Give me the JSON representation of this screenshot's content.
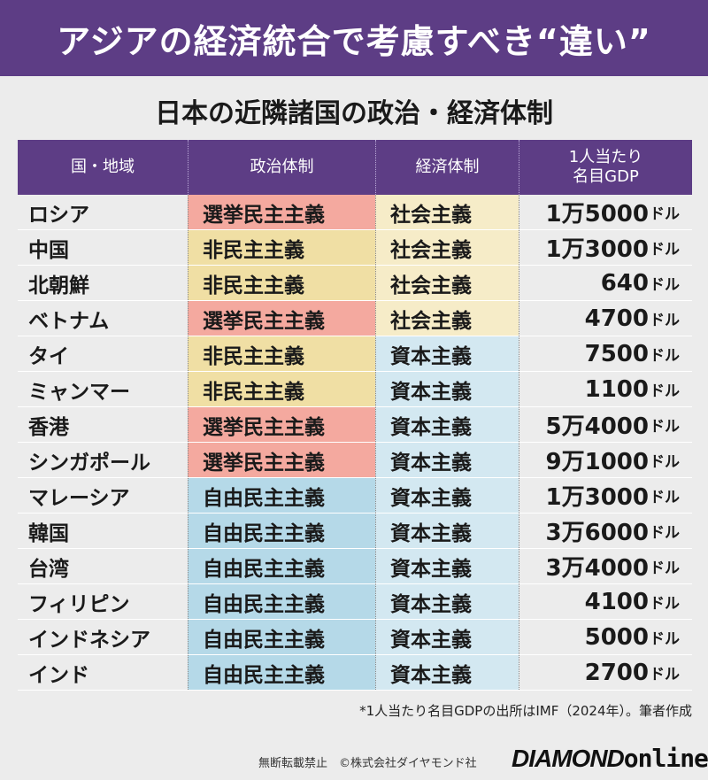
{
  "header": {
    "title": "アジアの経済統合で考慮すべき“違い”"
  },
  "subtitle": "日本の近隣諸国の政治・経済体制",
  "table": {
    "columns": [
      "国・地域",
      "政治体制",
      "経済体制",
      "1人当たり\n名目GDP"
    ],
    "rows": [
      {
        "country": "ロシア",
        "political": "選挙民主主義",
        "economic": "社会主義",
        "gdp_num": "1万5000",
        "gdp_unit": "ドル"
      },
      {
        "country": "中国",
        "political": "非民主主義",
        "economic": "社会主義",
        "gdp_num": "1万3000",
        "gdp_unit": "ドル"
      },
      {
        "country": "北朝鮮",
        "political": "非民主主義",
        "economic": "社会主義",
        "gdp_num": "640",
        "gdp_unit": "ドル"
      },
      {
        "country": "ベトナム",
        "political": "選挙民主主義",
        "economic": "社会主義",
        "gdp_num": "4700",
        "gdp_unit": "ドル"
      },
      {
        "country": "タイ",
        "political": "非民主主義",
        "economic": "資本主義",
        "gdp_num": "7500",
        "gdp_unit": "ドル"
      },
      {
        "country": "ミャンマー",
        "political": "非民主主義",
        "economic": "資本主義",
        "gdp_num": "1100",
        "gdp_unit": "ドル"
      },
      {
        "country": "香港",
        "political": "選挙民主主義",
        "economic": "資本主義",
        "gdp_num": "5万4000",
        "gdp_unit": "ドル"
      },
      {
        "country": "シンガポール",
        "political": "選挙民主主義",
        "economic": "資本主義",
        "gdp_num": "9万1000",
        "gdp_unit": "ドル"
      },
      {
        "country": "マレーシア",
        "political": "自由民主主義",
        "economic": "資本主義",
        "gdp_num": "1万3000",
        "gdp_unit": "ドル"
      },
      {
        "country": "韓国",
        "political": "自由民主主義",
        "economic": "資本主義",
        "gdp_num": "3万6000",
        "gdp_unit": "ドル"
      },
      {
        "country": "台湾",
        "political": "自由民主主義",
        "economic": "資本主義",
        "gdp_num": "3万4000",
        "gdp_unit": "ドル"
      },
      {
        "country": "フィリピン",
        "political": "自由民主主義",
        "economic": "資本主義",
        "gdp_num": "4100",
        "gdp_unit": "ドル"
      },
      {
        "country": "インドネシア",
        "political": "自由民主主義",
        "economic": "資本主義",
        "gdp_num": "5000",
        "gdp_unit": "ドル"
      },
      {
        "country": "インド",
        "political": "自由民主主義",
        "economic": "資本主義",
        "gdp_num": "2700",
        "gdp_unit": "ドル"
      }
    ]
  },
  "colors": {
    "header_bg": "#5d3d85",
    "選挙民主主義": "#f4a99f",
    "非民主主義": "#f0dfa4",
    "自由民主主義": "#b5d9e8",
    "社会主義": "#f6ecc8",
    "資本主義": "#d3e8f1"
  },
  "footnote": "*1人当たり名目GDPの出所はIMF（2024年）。筆者作成",
  "footer": {
    "copyright": "無断転載禁止　©株式会社ダイヤモンド社",
    "logo_main": "DIAMOND",
    "logo_sub": "online"
  }
}
